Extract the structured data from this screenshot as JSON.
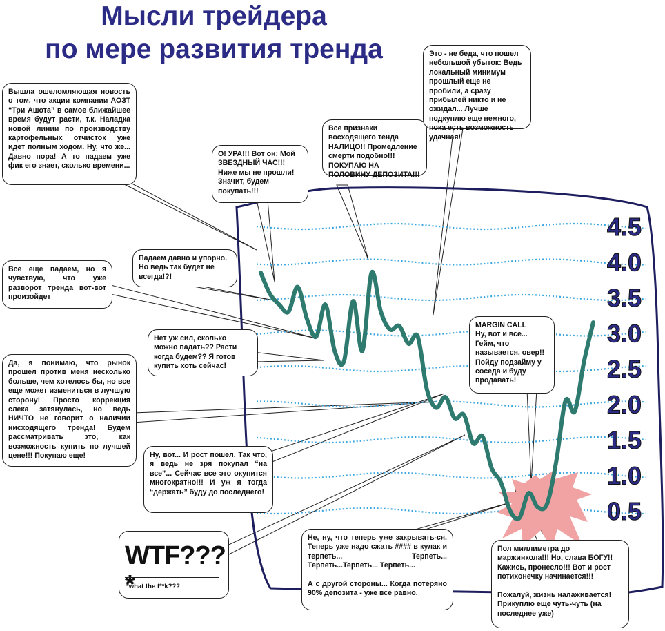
{
  "title": {
    "line1": "Мысли трейдера",
    "line2": "по мере развития тренда"
  },
  "colors": {
    "title": "#2b2b86",
    "price_line": "#2e7a6e",
    "wave": "#3aa6e0",
    "frame": "#1e1e5e",
    "explosion": "#f1a3a3"
  },
  "chart_data": {
    "type": "line",
    "y_ticks": [
      "4.5",
      "4.0",
      "3.5",
      "3.0",
      "2.5",
      "2.0",
      "1.5",
      "1.0",
      "0.5"
    ],
    "ylim": [
      0.5,
      4.5
    ],
    "grid": true,
    "series": [
      {
        "values": [
          3.85,
          3.55,
          3.4,
          3.3,
          3.65,
          3.2,
          2.95,
          3.4,
          2.75,
          2.6,
          3.45,
          2.75,
          3.85,
          3.3,
          3.05,
          3.1,
          2.85,
          2.95,
          2.2,
          1.95,
          2.1,
          1.8,
          1.85,
          1.45,
          1.55,
          1.1,
          0.9,
          0.5,
          0.4,
          0.75,
          0.55,
          0.6,
          1.2,
          2.05,
          1.9,
          2.6,
          3.15
        ]
      }
    ]
  },
  "bubbles": {
    "b1": "Вышла ошеломляющая новость о том, что акции компании АОЗТ “Три Ашота” в самое ближайшее время будут расти, т.к. Наладка новой линии по производству картофельных отчисток уже идет полным ходом. Ну, что же... Давно пора! А то падаем уже фик его знает, сколько времени...",
    "b2": "О! УРА!!! Вот он: Мой ЗВЕЗДНЫЙ ЧАС!!! Ниже мы не прошли! Значит, будем покупать!!!",
    "b3": "Все признаки восходящего тенда НАЛИЦО!! Промедление смерти подобно!!! ПОКУПАЮ НА ПОЛОВИНУ ДЕПОЗИТА!!!",
    "b4": "Это - не беда, что пошел небольшой убыток: Ведь локальный минимум прошлый еще не пробили, а сразу прибылей никто и не ожидал... Лучше подкуплю еще немного, пока есть возможность удачная!",
    "b5": "Падаем давно и упорно. Но ведь так будет не всегда!?!",
    "b6": "Все еще падаем, но я чувствую, что уже разворот тренда вот-вот произойдет",
    "b7": "Нет уж сил, сколько можно падать?? Расти когда будем?? Я готов купить хоть сейчас!",
    "b8": "Да, я понимаю, что рынок прошел против меня несколько больше, чем хотелось бы, но все еще может измениться в лучшую сторону! Просто коррекция слека затянулась, но ведь НИЧТО не говорит о наличии нисходящего тренда! Будем рассматривать это, как возможность купить по лучшей цене!!! Покупаю еще!",
    "b9": "Ну, вот... И рост пошел. Так что, я ведь не зря покупал “на все”... Сейчас все это окупится многократно!!! И уж я тогда “держать” буду до последнего!",
    "b10": "MARGIN CALL\nНу, вот и все... Гейм, что называется, овер!! Пойду подзайму у соседа и буду продавать!",
    "b11": "Не, ну, что теперь уже закрывать-ся. Теперь уже надо сжать #### в кулак и терпеть... Терпеть... Терпеть...Терпеть... Терпеть...\n\nА с другой стороны... Когда потеряно 90% депозита - уже все равно.",
    "b12": "Пол миллиметра до маржинкола!!! Но, слава БОГУ!! Кажись, пронесло!!! Вот и рост потихонечку начинается!!!\n\nПожалуй, жизнь налаживается! Прикуплю еще чуть-чуть (на последнее уже)"
  },
  "wtf": {
    "big": "WTF???*",
    "small": "*what the f**k???"
  }
}
